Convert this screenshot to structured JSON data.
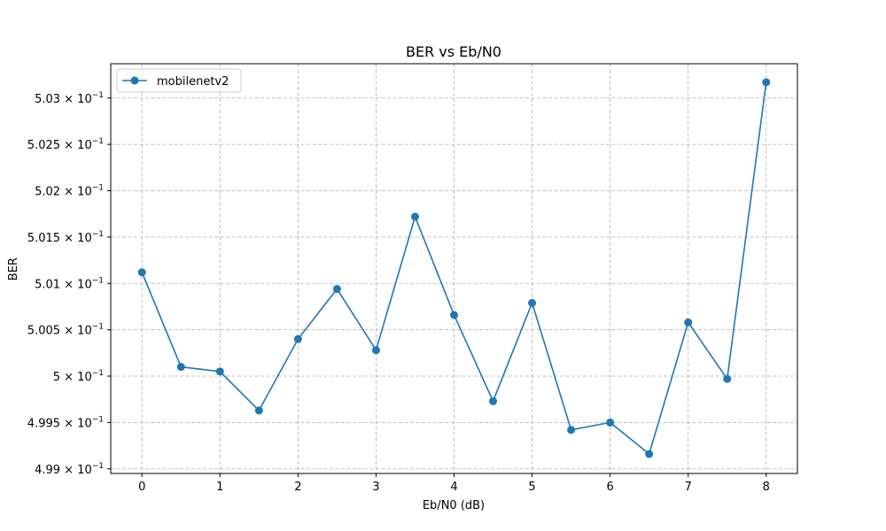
{
  "chart_data": {
    "type": "line",
    "title": "BER vs Eb/N0",
    "xlabel": "Eb/N0 (dB)",
    "ylabel": "BER",
    "xlim": [
      -0.4,
      8.4
    ],
    "ylim": [
      0.49895,
      0.50337
    ],
    "grid": true,
    "legend_position": "top-left",
    "x_ticks": [
      0,
      1,
      2,
      3,
      4,
      5,
      6,
      7,
      8
    ],
    "y_ticks": [
      {
        "value": 0.499,
        "mantissa": "4.99"
      },
      {
        "value": 0.4995,
        "mantissa": "4.995"
      },
      {
        "value": 0.5,
        "mantissa": "5"
      },
      {
        "value": 0.5005,
        "mantissa": "5.005"
      },
      {
        "value": 0.501,
        "mantissa": "5.01"
      },
      {
        "value": 0.5015,
        "mantissa": "5.015"
      },
      {
        "value": 0.502,
        "mantissa": "5.02"
      },
      {
        "value": 0.5025,
        "mantissa": "5.025"
      },
      {
        "value": 0.503,
        "mantissa": "5.03"
      }
    ],
    "y_tick_base": "× 10",
    "y_tick_exponent": "−1",
    "series": [
      {
        "name": "mobilenetv2",
        "color": "#1f77b4",
        "marker": "circle",
        "x": [
          0,
          0.5,
          1,
          1.5,
          2,
          2.5,
          3,
          3.5,
          4,
          4.5,
          5,
          5.5,
          6,
          6.5,
          7,
          7.5,
          8
        ],
        "y": [
          0.50112,
          0.5001,
          0.50005,
          0.49963,
          0.5004,
          0.50094,
          0.50028,
          0.50172,
          0.50066,
          0.49973,
          0.50079,
          0.49942,
          0.4995,
          0.49916,
          0.50058,
          0.49997,
          0.50317
        ]
      }
    ]
  }
}
